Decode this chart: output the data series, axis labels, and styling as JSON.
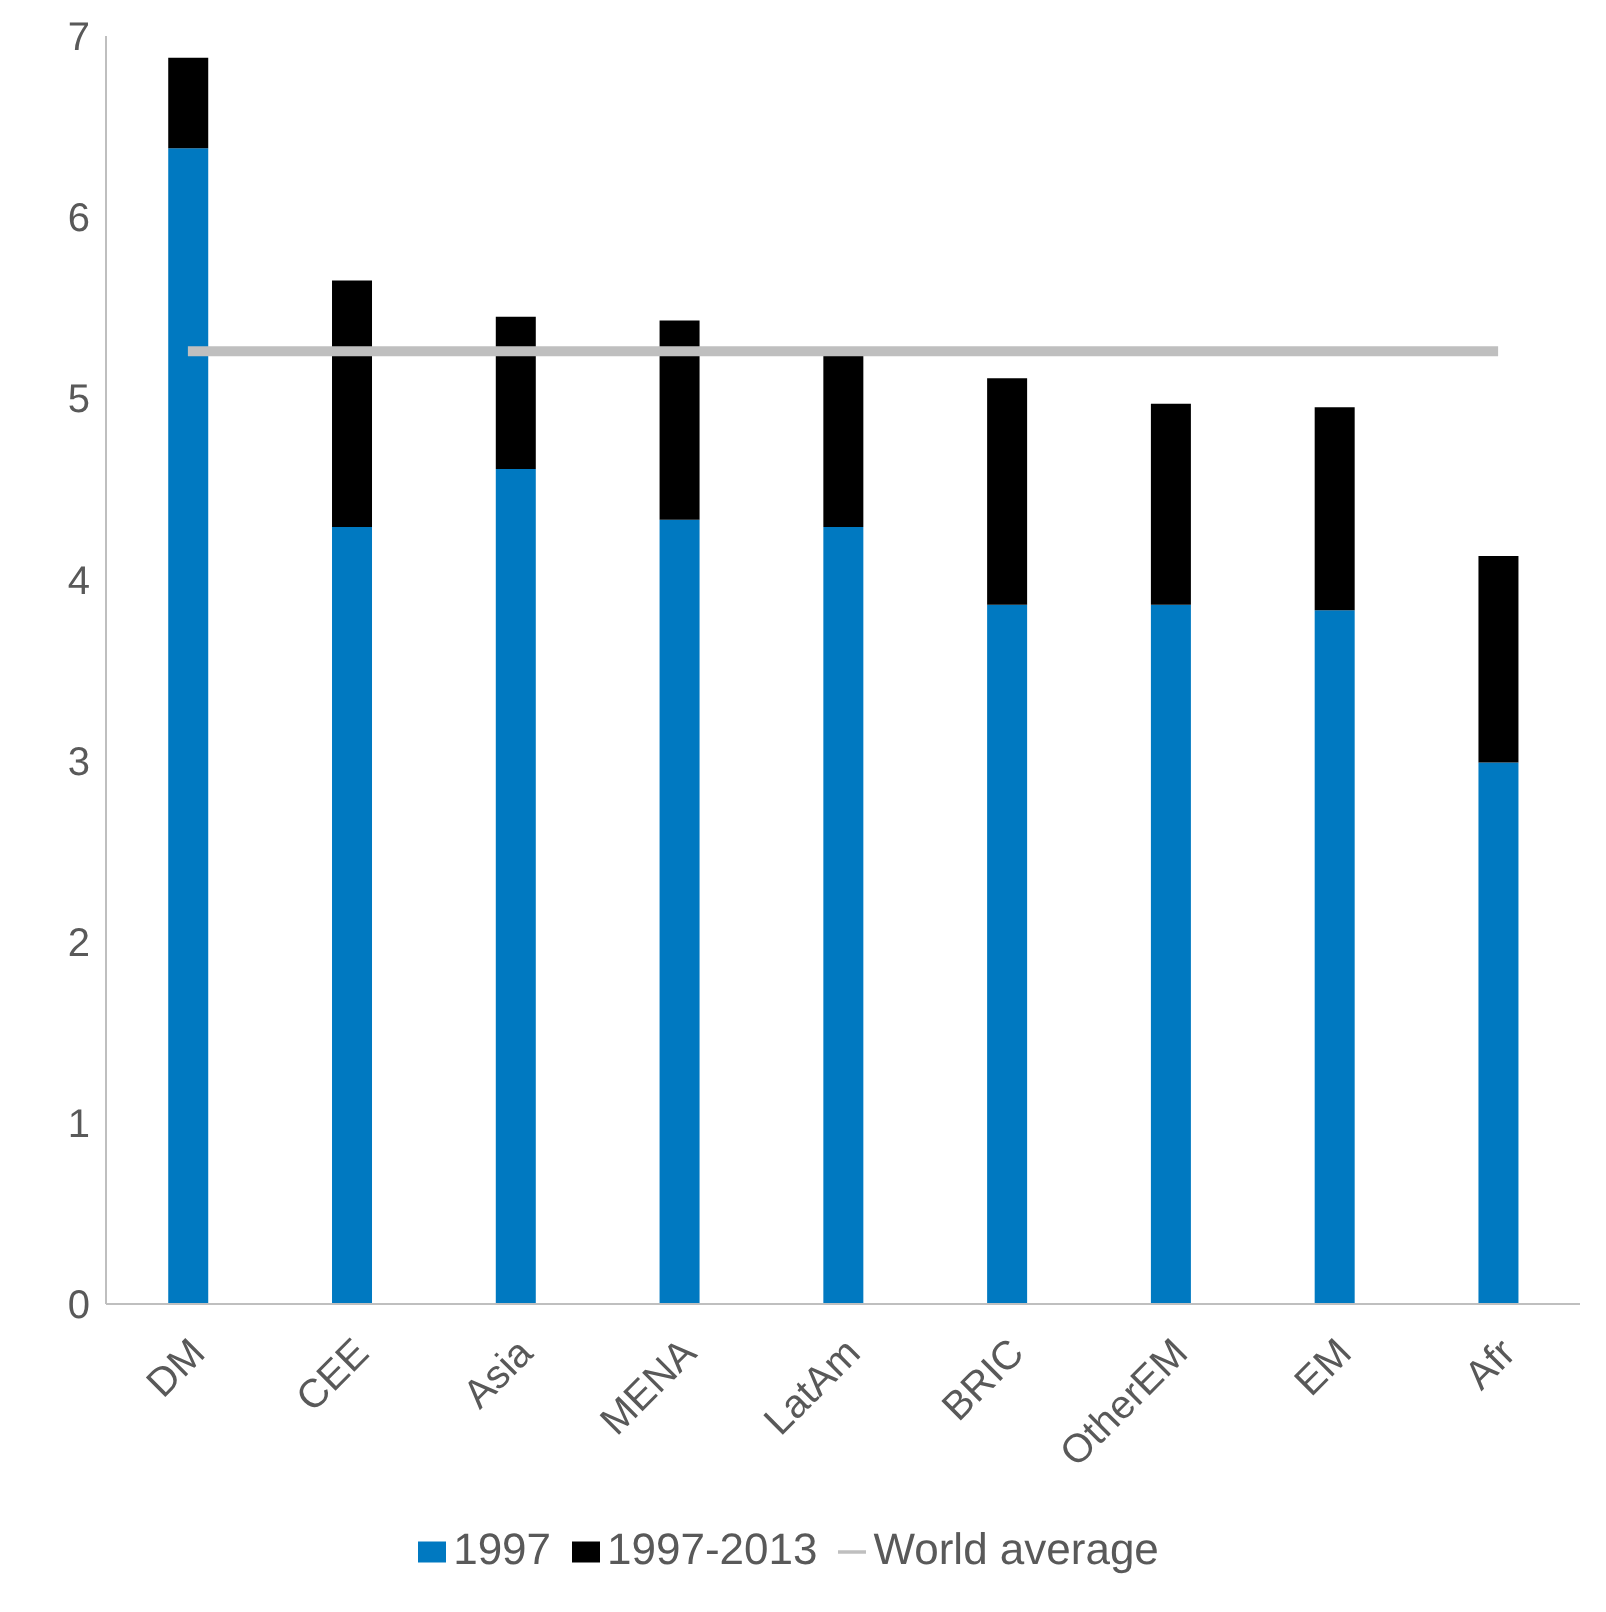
{
  "chart_data": {
    "type": "bar",
    "stacked": true,
    "categories": [
      "DM",
      "CEE",
      "Asia",
      "MENA",
      "LatAm",
      "BRIC",
      "OtherEM",
      "EM",
      "Afr"
    ],
    "series": [
      {
        "name": "1997",
        "color": "#0079c1",
        "values": [
          6.38,
          4.29,
          4.61,
          4.33,
          4.29,
          3.86,
          3.86,
          3.83,
          2.99
        ]
      },
      {
        "name": "1997-2013",
        "color": "#000000",
        "values": [
          0.5,
          1.36,
          0.84,
          1.1,
          0.95,
          1.25,
          1.11,
          1.12,
          1.14
        ]
      },
      {
        "name": "World average",
        "type": "line",
        "color": "#bfbfbf",
        "values": [
          5.26,
          5.26,
          5.26,
          5.26,
          5.26,
          5.26,
          5.26,
          5.26,
          5.26
        ]
      }
    ],
    "ylim": [
      0,
      7
    ],
    "yticks": [
      0,
      1,
      2,
      3,
      4,
      5,
      6,
      7
    ],
    "grid": false,
    "legend": "bottom",
    "marker": "none"
  }
}
